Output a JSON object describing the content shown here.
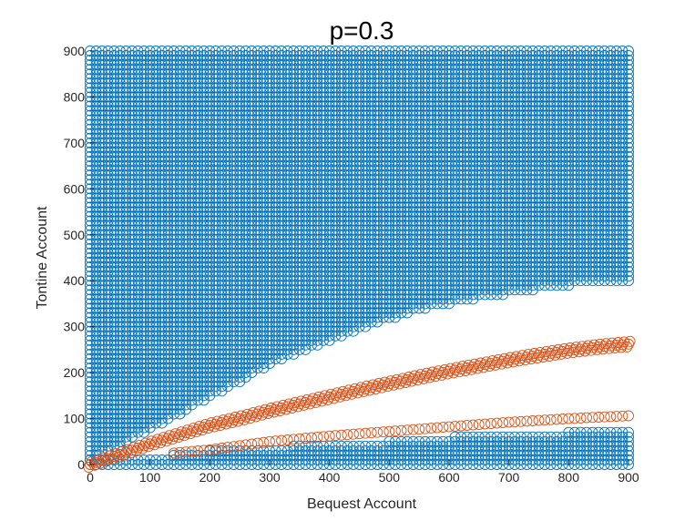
{
  "chart_data": {
    "type": "scatter",
    "title": "p=0.3",
    "xlabel": "Bequest Account",
    "ylabel": "Tontine Account",
    "xlim": [
      0,
      900
    ],
    "ylim": [
      0,
      900
    ],
    "xticks": [
      0,
      100,
      200,
      300,
      400,
      500,
      600,
      700,
      800,
      900
    ],
    "yticks": [
      0,
      100,
      200,
      300,
      400,
      500,
      600,
      700,
      800,
      900
    ],
    "marker": "open-circle",
    "grid": "off",
    "colors": {
      "region": "#0072BD",
      "curve": "#D95319"
    },
    "grid_step": 10,
    "series": [
      {
        "color": "#0072BD",
        "kind": "region",
        "upper_region": {
          "y_max": 900,
          "lower_boundary": [
            {
              "x": 0,
              "y": 10
            },
            {
              "x": 50,
              "y": 40
            },
            {
              "x": 100,
              "y": 75
            },
            {
              "x": 150,
              "y": 110
            },
            {
              "x": 200,
              "y": 145
            },
            {
              "x": 250,
              "y": 180
            },
            {
              "x": 300,
              "y": 215
            },
            {
              "x": 350,
              "y": 245
            },
            {
              "x": 400,
              "y": 270
            },
            {
              "x": 450,
              "y": 295
            },
            {
              "x": 500,
              "y": 315
            },
            {
              "x": 550,
              "y": 335
            },
            {
              "x": 600,
              "y": 350
            },
            {
              "x": 650,
              "y": 362
            },
            {
              "x": 700,
              "y": 372
            },
            {
              "x": 750,
              "y": 381
            },
            {
              "x": 800,
              "y": 389
            },
            {
              "x": 850,
              "y": 395
            },
            {
              "x": 900,
              "y": 400
            }
          ]
        },
        "lower_region": {
          "y_min": 0,
          "upper_boundary": [
            {
              "x": 0,
              "y": 10
            },
            {
              "x": 100,
              "y": 10
            },
            {
              "x": 140,
              "y": 20
            },
            {
              "x": 200,
              "y": 30
            },
            {
              "x": 300,
              "y": 30
            },
            {
              "x": 340,
              "y": 40
            },
            {
              "x": 500,
              "y": 50
            },
            {
              "x": 610,
              "y": 60
            },
            {
              "x": 800,
              "y": 70
            },
            {
              "x": 900,
              "y": 70
            }
          ]
        }
      },
      {
        "color": "#D95319",
        "kind": "curve",
        "points": [
          {
            "x": 0,
            "y": 0
          },
          {
            "x": 50,
            "y": 22
          },
          {
            "x": 100,
            "y": 45
          },
          {
            "x": 150,
            "y": 65
          },
          {
            "x": 200,
            "y": 85
          },
          {
            "x": 250,
            "y": 100
          },
          {
            "x": 300,
            "y": 117
          },
          {
            "x": 350,
            "y": 132
          },
          {
            "x": 400,
            "y": 147
          },
          {
            "x": 450,
            "y": 162
          },
          {
            "x": 500,
            "y": 176
          },
          {
            "x": 550,
            "y": 190
          },
          {
            "x": 600,
            "y": 203
          },
          {
            "x": 650,
            "y": 215
          },
          {
            "x": 700,
            "y": 227
          },
          {
            "x": 750,
            "y": 238
          },
          {
            "x": 800,
            "y": 248
          },
          {
            "x": 850,
            "y": 256
          },
          {
            "x": 900,
            "y": 262
          }
        ],
        "band_halfwidth": 6
      },
      {
        "color": "#D95319",
        "kind": "curve",
        "points": [
          {
            "x": 140,
            "y": 25
          },
          {
            "x": 200,
            "y": 32
          },
          {
            "x": 300,
            "y": 50
          },
          {
            "x": 400,
            "y": 62
          },
          {
            "x": 500,
            "y": 72
          },
          {
            "x": 600,
            "y": 82
          },
          {
            "x": 700,
            "y": 92
          },
          {
            "x": 800,
            "y": 100
          },
          {
            "x": 900,
            "y": 106
          }
        ],
        "band_halfwidth": 0
      }
    ]
  }
}
